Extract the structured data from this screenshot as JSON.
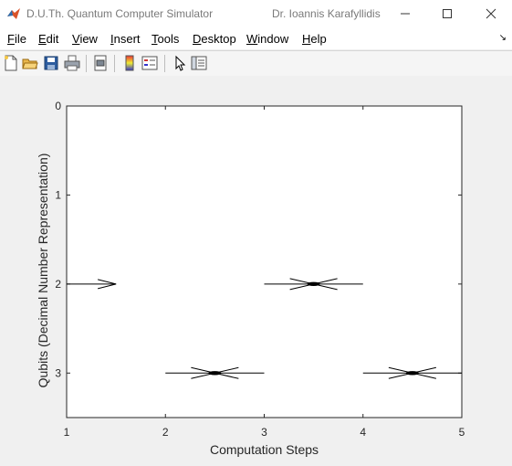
{
  "window": {
    "title": "D.U.Th.  Quantum Computer Simulator",
    "author": "Dr. Ioannis Karafyllidis",
    "controls": [
      "minimize",
      "maximize",
      "close"
    ]
  },
  "menu": {
    "file": "File",
    "file_key": "F",
    "file_rest": "ile",
    "edit": "Edit",
    "edit_key": "E",
    "edit_rest": "dit",
    "view": "View",
    "view_key": "V",
    "view_rest": "iew",
    "insert": "Insert",
    "insert_key": "I",
    "insert_rest": "nsert",
    "tools": "Tools",
    "tools_key": "T",
    "tools_rest": "ools",
    "desktop": "Desktop",
    "desktop_key": "D",
    "desktop_rest": "esktop",
    "window": "Window",
    "window_key": "W",
    "window_rest": "indow",
    "help": "Help",
    "help_key": "H",
    "help_rest": "elp"
  },
  "toolbar": {
    "icons": [
      "new-figure-icon",
      "open-file-icon",
      "save-icon",
      "print-icon",
      "print-preview-icon",
      "colorbar-icon",
      "legend-icon",
      "pointer-icon",
      "property-inspector-icon"
    ]
  },
  "chart_data": {
    "type": "line",
    "xlabel": "Computation Steps",
    "ylabel": "Qubits (Decimal Number Representation)",
    "xlim": [
      1,
      5
    ],
    "ylim": [
      0,
      3.5
    ],
    "y_reversed": true,
    "xticks": [
      "1",
      "2",
      "3",
      "4",
      "5"
    ],
    "yticks": [
      "0",
      "1",
      "2",
      "3"
    ],
    "grid": false,
    "segments": [
      {
        "step": [
          1,
          1.5
        ],
        "qubit": 2,
        "marker": "arrow"
      },
      {
        "step": [
          2,
          3
        ],
        "qubit": 3,
        "marker": "cross"
      },
      {
        "step": [
          3,
          4
        ],
        "qubit": 2,
        "marker": "cross"
      },
      {
        "step": [
          4,
          5
        ],
        "qubit": 3,
        "marker": "cross"
      }
    ]
  }
}
